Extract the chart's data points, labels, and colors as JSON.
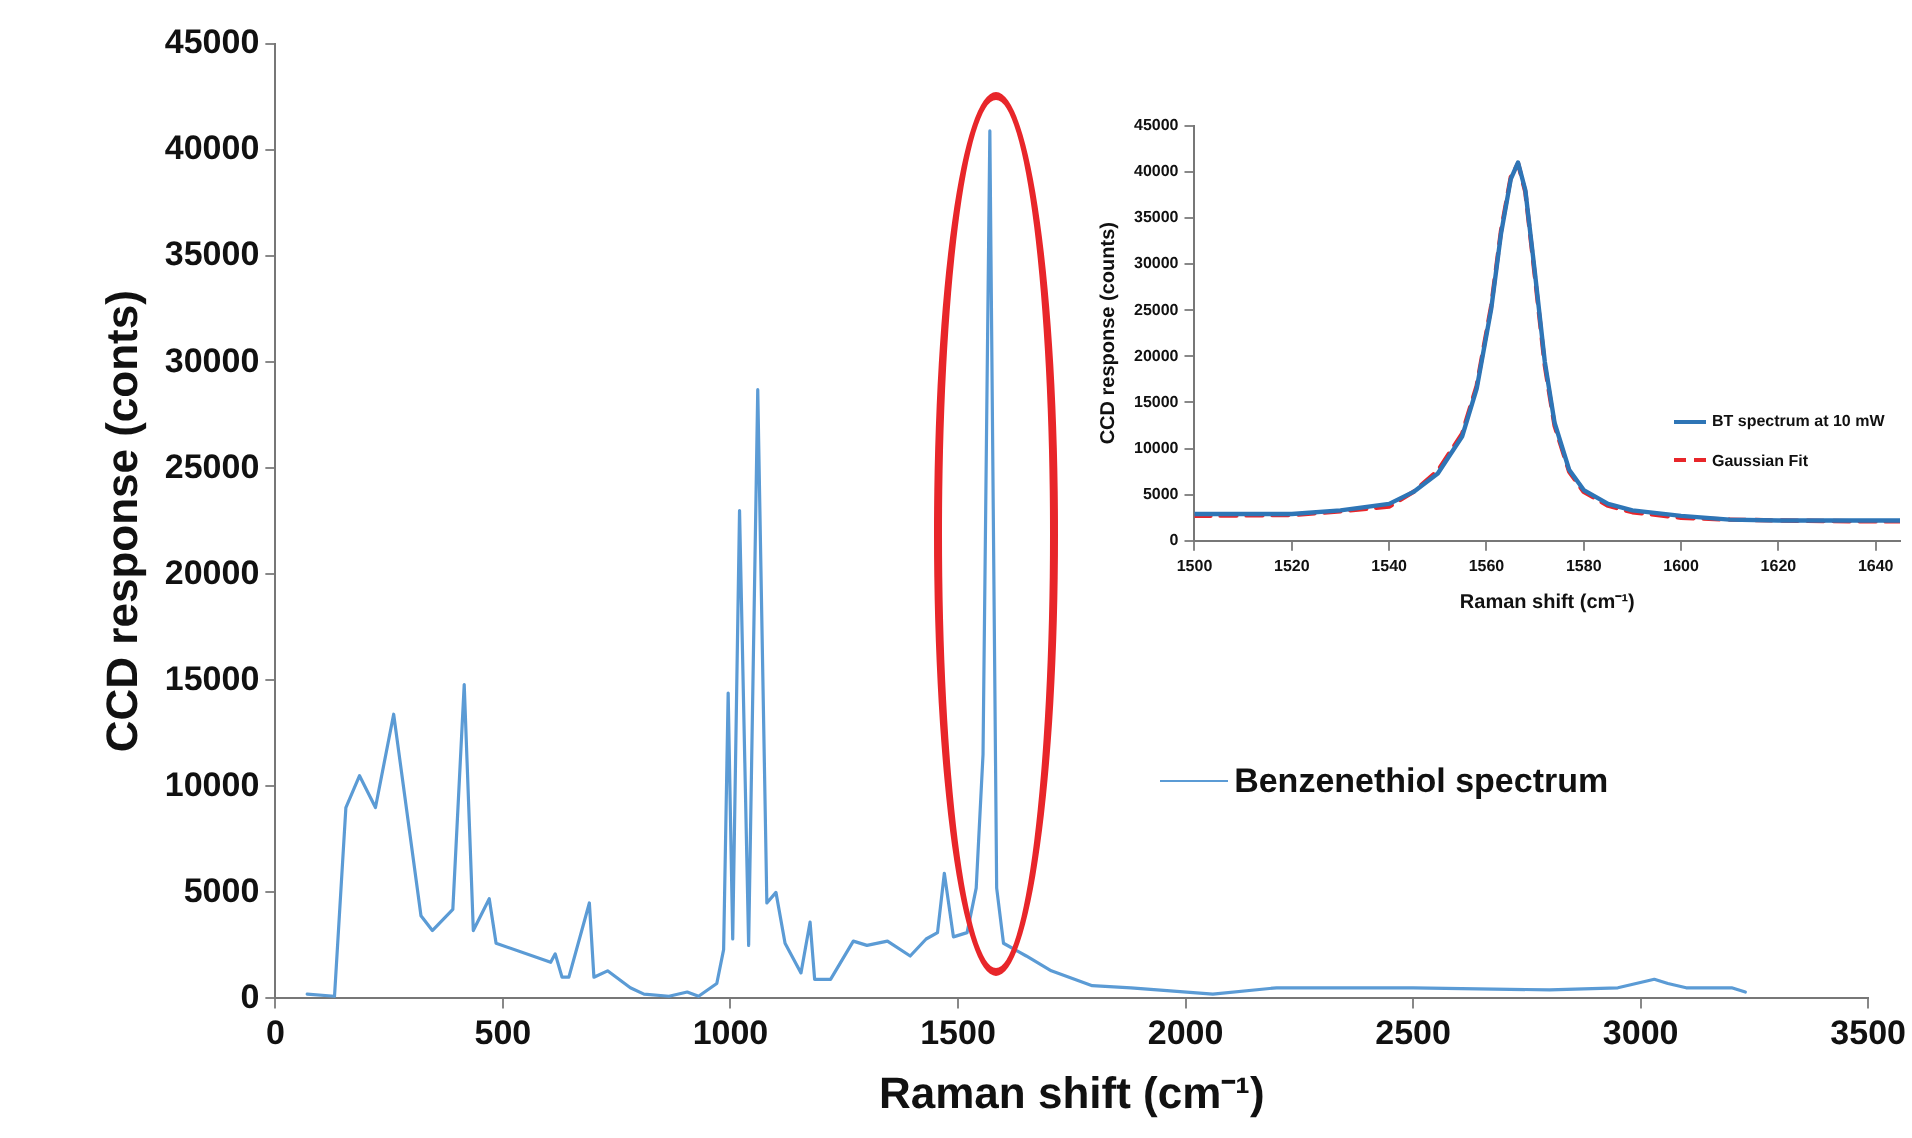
{
  "chart_data": [
    {
      "type": "line",
      "xlabel": "Raman shift (cm⁻¹)",
      "ylabel": "CCD response (conts)",
      "xlim": [
        0,
        3500
      ],
      "xticks": [
        0,
        500,
        1000,
        1500,
        2000,
        2500,
        3000,
        3500
      ],
      "ylim": [
        0,
        45000
      ],
      "yticks": [
        0,
        5000,
        10000,
        15000,
        20000,
        25000,
        30000,
        35000,
        40000,
        45000
      ],
      "legend": "bottom right",
      "marker": "none",
      "x": [
        70,
        130,
        155,
        185,
        220,
        260,
        320,
        345,
        390,
        415,
        435,
        470,
        485,
        605,
        615,
        630,
        645,
        690,
        700,
        730,
        780,
        810,
        865,
        905,
        930,
        970,
        985,
        995,
        1005,
        1020,
        1040,
        1060,
        1080,
        1100,
        1120,
        1155,
        1175,
        1185,
        1220,
        1270,
        1300,
        1345,
        1395,
        1430,
        1455,
        1470,
        1490,
        1520,
        1540,
        1555,
        1570,
        1585,
        1600,
        1650,
        1705,
        1795,
        1880,
        2060,
        2200,
        2500,
        2800,
        2950,
        3030,
        3060,
        3100,
        3200,
        3230
      ],
      "series": [
        {
          "name": "Benzenethiol spectrum",
          "color": "#5b9bd5",
          "line_style": "solid",
          "values": [
            200,
            100,
            9000,
            10500,
            9000,
            13400,
            3900,
            3200,
            4200,
            14800,
            3200,
            4700,
            2600,
            1700,
            2100,
            1000,
            1000,
            4500,
            1000,
            1300,
            500,
            200,
            100,
            300,
            100,
            700,
            2300,
            14400,
            2800,
            23000,
            2500,
            28700,
            4500,
            5000,
            2600,
            1200,
            3600,
            900,
            900,
            2700,
            2500,
            2700,
            2000,
            2800,
            3100,
            5900,
            2900,
            3100,
            5200,
            11500,
            40900,
            5200,
            2600,
            2000,
            1300,
            600,
            500,
            200,
            500,
            500,
            400,
            500,
            900,
            700,
            500,
            500,
            300
          ]
        }
      ]
    },
    {
      "type": "line",
      "xlabel": "Raman shift (cm⁻¹)",
      "ylabel": "CCD response (counts)",
      "xlim": [
        1500,
        1645
      ],
      "xticks": [
        1500,
        1520,
        1540,
        1560,
        1580,
        1600,
        1620,
        1640
      ],
      "ylim": [
        0,
        45000
      ],
      "yticks": [
        0,
        5000,
        10000,
        15000,
        20000,
        25000,
        30000,
        35000,
        40000,
        45000
      ],
      "legend": "bottom right",
      "marker": "none",
      "x": [
        1500,
        1520,
        1530,
        1540,
        1545,
        1550,
        1555,
        1558,
        1561,
        1563,
        1565,
        1566.5,
        1568,
        1570,
        1572,
        1574,
        1577,
        1580,
        1585,
        1590,
        1600,
        1610,
        1620,
        1640,
        1645
      ],
      "series": [
        {
          "name": "BT spectrum at 10 mW",
          "color": "#2e75b6",
          "line_style": "solid",
          "values": [
            2900,
            2900,
            3300,
            4000,
            5300,
            7300,
            11300,
            16500,
            25200,
            33300,
            39200,
            41000,
            38000,
            28900,
            19400,
            12800,
            7700,
            5500,
            4000,
            3300,
            2700,
            2300,
            2200,
            2200,
            2200
          ]
        },
        {
          "name": "Gaussian Fit",
          "color": "#e8262a",
          "line_style": "dashed",
          "values": [
            2700,
            2800,
            3200,
            3700,
            5300,
            7600,
            11600,
            16800,
            25500,
            33600,
            39400,
            40900,
            37800,
            28500,
            19000,
            12500,
            7500,
            5300,
            3800,
            3100,
            2500,
            2300,
            2200,
            2100,
            2100
          ]
        }
      ]
    }
  ]
}
